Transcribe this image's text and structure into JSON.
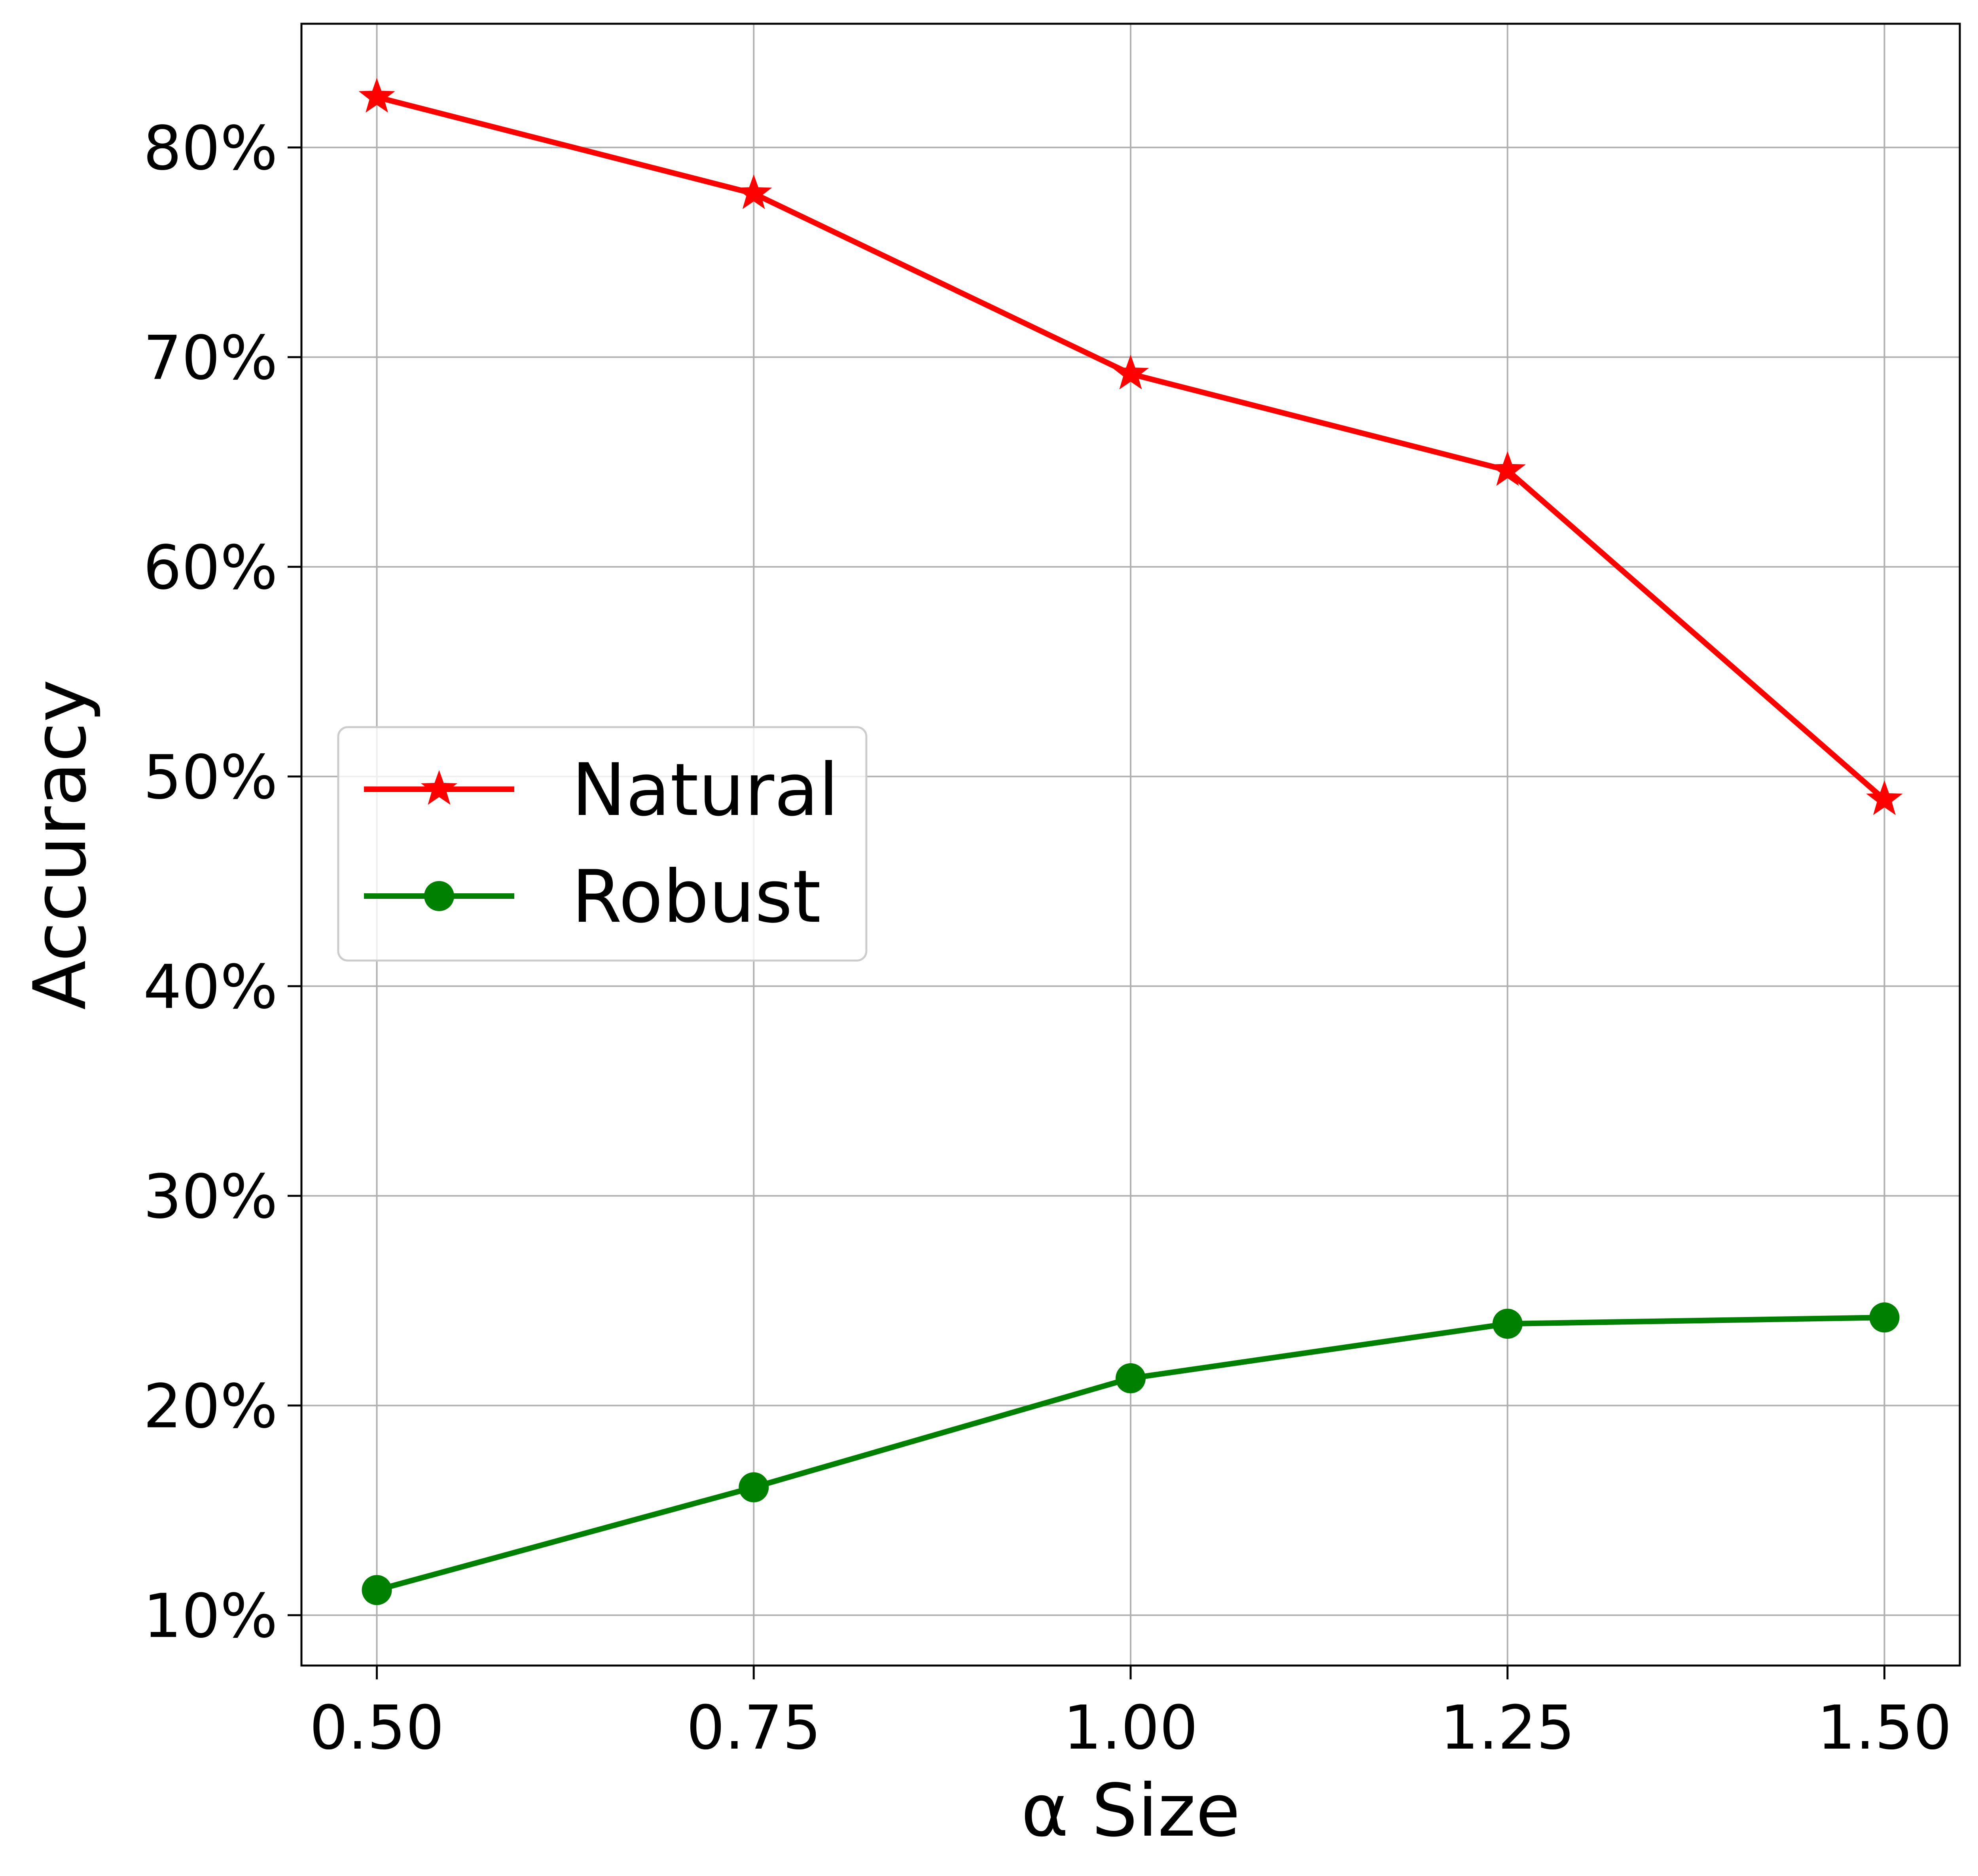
{
  "chart_data": {
    "type": "line",
    "title": "",
    "xlabel": "α Size",
    "ylabel": "Accuracy",
    "x": [
      0.5,
      0.75,
      1.0,
      1.25,
      1.5
    ],
    "x_ticks": [
      "0.50",
      "0.75",
      "1.00",
      "1.25",
      "1.50"
    ],
    "y_ticks": [
      "10%",
      "20%",
      "30%",
      "40%",
      "50%",
      "60%",
      "70%",
      "80%"
    ],
    "y_tick_values": [
      10,
      20,
      30,
      40,
      50,
      60,
      70,
      80
    ],
    "xlim": [
      0.45,
      1.55
    ],
    "ylim": [
      7.6,
      85.9
    ],
    "y_unit": "%",
    "grid": true,
    "legend_position": "center-left",
    "series": [
      {
        "name": "Natural",
        "values": [
          82.4,
          77.8,
          69.2,
          64.6,
          48.9
        ],
        "color": "#ff0000",
        "marker": "star"
      },
      {
        "name": "Robust",
        "values": [
          11.2,
          16.1,
          21.3,
          23.9,
          24.2
        ],
        "color": "#008000",
        "marker": "circle"
      }
    ]
  }
}
